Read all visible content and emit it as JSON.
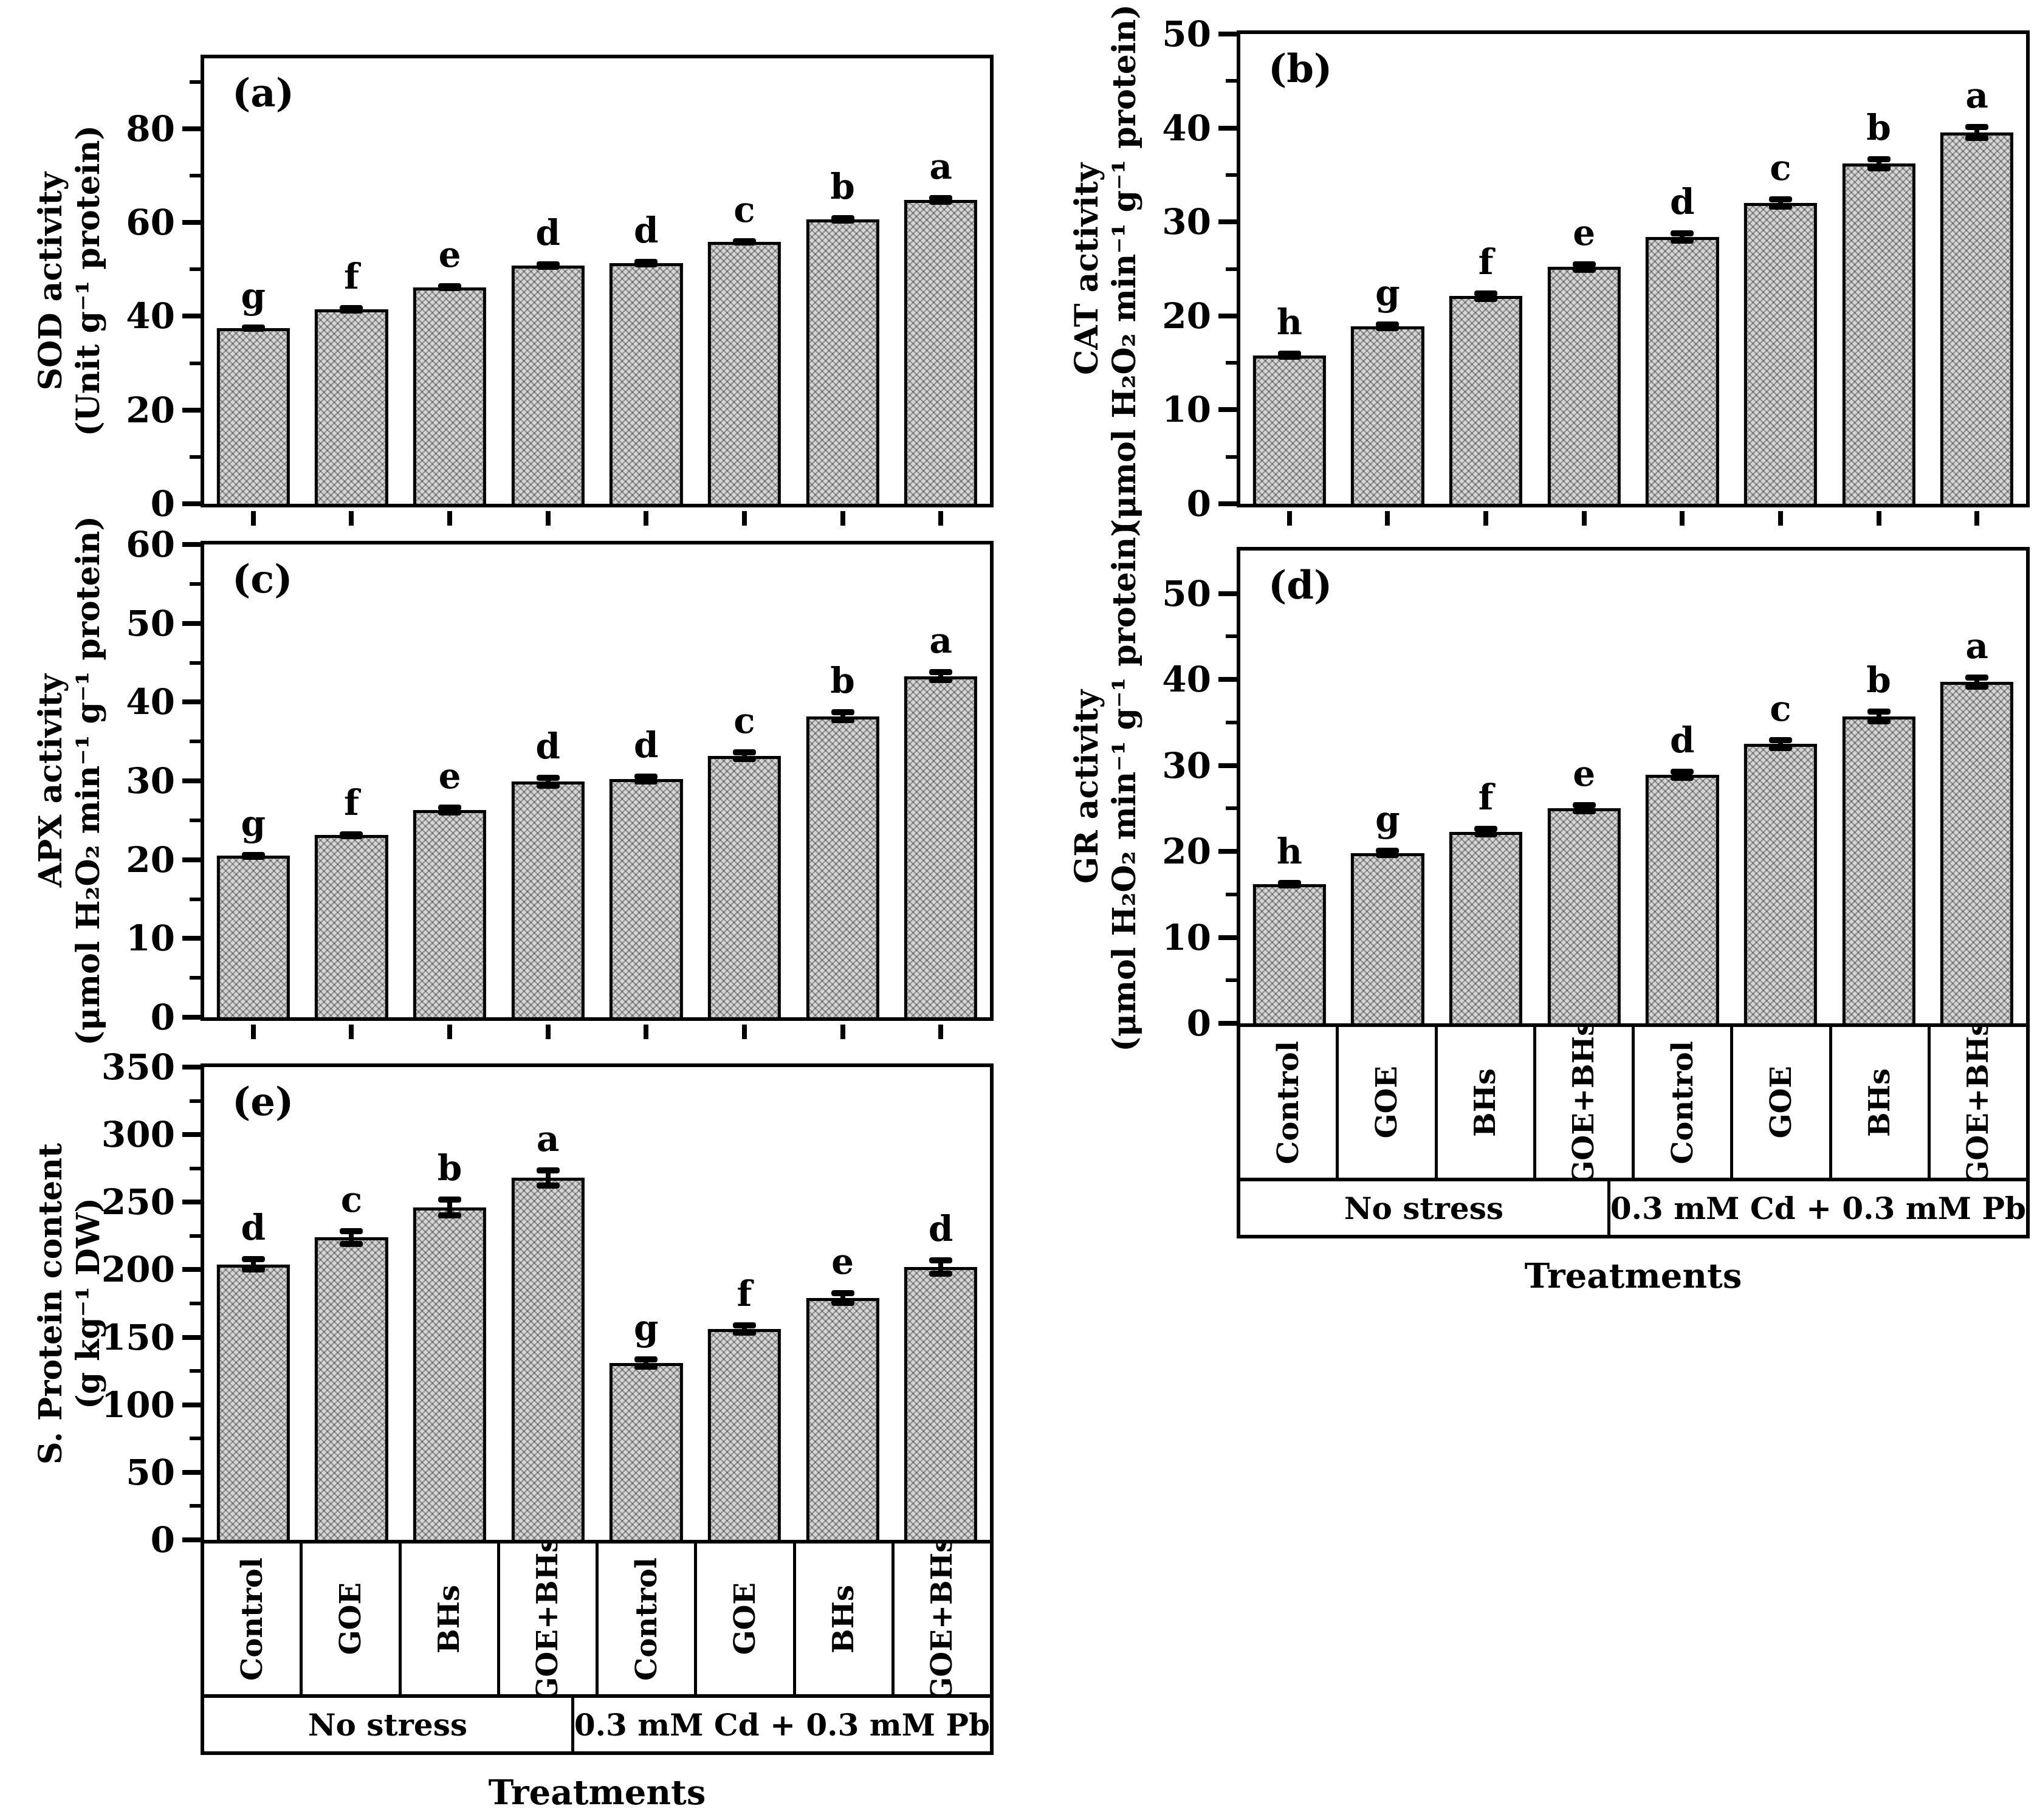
{
  "figure": {
    "xlabel": "Treatments",
    "categories": [
      "Control",
      "GOE",
      "BHs",
      "GOE+BHs",
      "Control",
      "GOE",
      "BHs",
      "GOE+BHs"
    ],
    "groups": [
      "No stress",
      "0.3 mM Cd + 0.3 mM Pb"
    ]
  },
  "chart_data": [
    {
      "type": "bar",
      "id": "a",
      "panel": "(a)",
      "ylabel": "SOD activity",
      "ylabel_units": "(Unit g⁻¹ protein)",
      "ylim": [
        0,
        95
      ],
      "yticks": [
        0,
        20,
        40,
        60,
        80
      ],
      "yminor": 10,
      "categories": [
        "Control",
        "GOE",
        "BHs",
        "GOE+BHs",
        "Control",
        "GOE",
        "BHs",
        "GOE+BHs"
      ],
      "values": [
        37.5,
        41.5,
        46.2,
        50.8,
        51.3,
        55.9,
        60.7,
        64.8
      ],
      "errors": [
        0.8,
        0.9,
        0.9,
        0.9,
        0.9,
        0.8,
        0.9,
        1.0
      ],
      "letters": [
        "g",
        "f",
        "e",
        "d",
        "d",
        "c",
        "b",
        "a"
      ],
      "x_axis": "ticks"
    },
    {
      "type": "bar",
      "id": "b",
      "panel": "(b)",
      "ylabel": "CAT activity",
      "ylabel_units": "(μmol H₂O₂ min⁻¹ g⁻¹ protein)",
      "ylim": [
        0,
        50
      ],
      "yticks": [
        0,
        10,
        20,
        30,
        40,
        50
      ],
      "yminor": 5,
      "categories": [
        "Control",
        "GOE",
        "BHs",
        "GOE+BHs",
        "Control",
        "GOE",
        "BHs",
        "GOE+BHs"
      ],
      "values": [
        15.8,
        18.9,
        22.1,
        25.2,
        28.4,
        32.0,
        36.2,
        39.5
      ],
      "errors": [
        0.5,
        0.5,
        0.6,
        0.6,
        0.7,
        0.7,
        0.8,
        0.9
      ],
      "letters": [
        "h",
        "g",
        "f",
        "e",
        "d",
        "c",
        "b",
        "a"
      ],
      "x_axis": "ticks"
    },
    {
      "type": "bar",
      "id": "c",
      "panel": "(c)",
      "ylabel": "APX activity",
      "ylabel_units": "(μmol H₂O₂ min⁻¹ g⁻¹ protein)",
      "ylim": [
        0,
        60
      ],
      "yticks": [
        0,
        10,
        20,
        30,
        40,
        50,
        60
      ],
      "yminor": 5,
      "categories": [
        "Control",
        "GOE",
        "BHs",
        "GOE+BHs",
        "Control",
        "GOE",
        "BHs",
        "GOE+BHs"
      ],
      "values": [
        20.5,
        23.1,
        26.3,
        29.9,
        30.2,
        33.2,
        38.2,
        43.3
      ],
      "errors": [
        0.5,
        0.5,
        0.7,
        0.9,
        0.7,
        0.8,
        0.9,
        0.9
      ],
      "letters": [
        "g",
        "f",
        "e",
        "d",
        "d",
        "c",
        "b",
        "a"
      ],
      "x_axis": "ticks"
    },
    {
      "type": "bar",
      "id": "d",
      "panel": "(d)",
      "ylabel": "GR activity",
      "ylabel_units": "(μmol H₂O₂ min⁻¹ g⁻¹ protein)",
      "ylim": [
        0,
        55
      ],
      "yticks": [
        0,
        10,
        20,
        30,
        40,
        50
      ],
      "yminor": 5,
      "categories": [
        "Control",
        "GOE",
        "BHs",
        "GOE+BHs",
        "Control",
        "GOE",
        "BHs",
        "GOE+BHs"
      ],
      "values": [
        16.2,
        19.8,
        22.3,
        25.0,
        28.9,
        32.5,
        35.7,
        39.7
      ],
      "errors": [
        0.5,
        0.6,
        0.7,
        0.7,
        0.7,
        0.8,
        0.9,
        0.9
      ],
      "letters": [
        "h",
        "g",
        "f",
        "e",
        "d",
        "c",
        "b",
        "a"
      ],
      "x_axis": "table"
    },
    {
      "type": "bar",
      "id": "e",
      "panel": "(e)",
      "ylabel": "S. Protein content",
      "ylabel_units": "(g kg⁻¹ DW)",
      "ylim": [
        0,
        350
      ],
      "yticks": [
        0,
        50,
        100,
        150,
        200,
        250,
        300,
        350
      ],
      "yminor": 25,
      "categories": [
        "Control",
        "GOE",
        "BHs",
        "GOE+BHs",
        "Control",
        "GOE",
        "BHs",
        "GOE+BHs"
      ],
      "values": [
        204,
        224,
        246,
        268,
        131,
        156,
        179,
        202
      ],
      "errors": [
        6,
        7,
        8,
        8,
        5,
        5,
        6,
        7
      ],
      "letters": [
        "d",
        "c",
        "b",
        "a",
        "g",
        "f",
        "e",
        "d"
      ],
      "x_axis": "table"
    }
  ]
}
